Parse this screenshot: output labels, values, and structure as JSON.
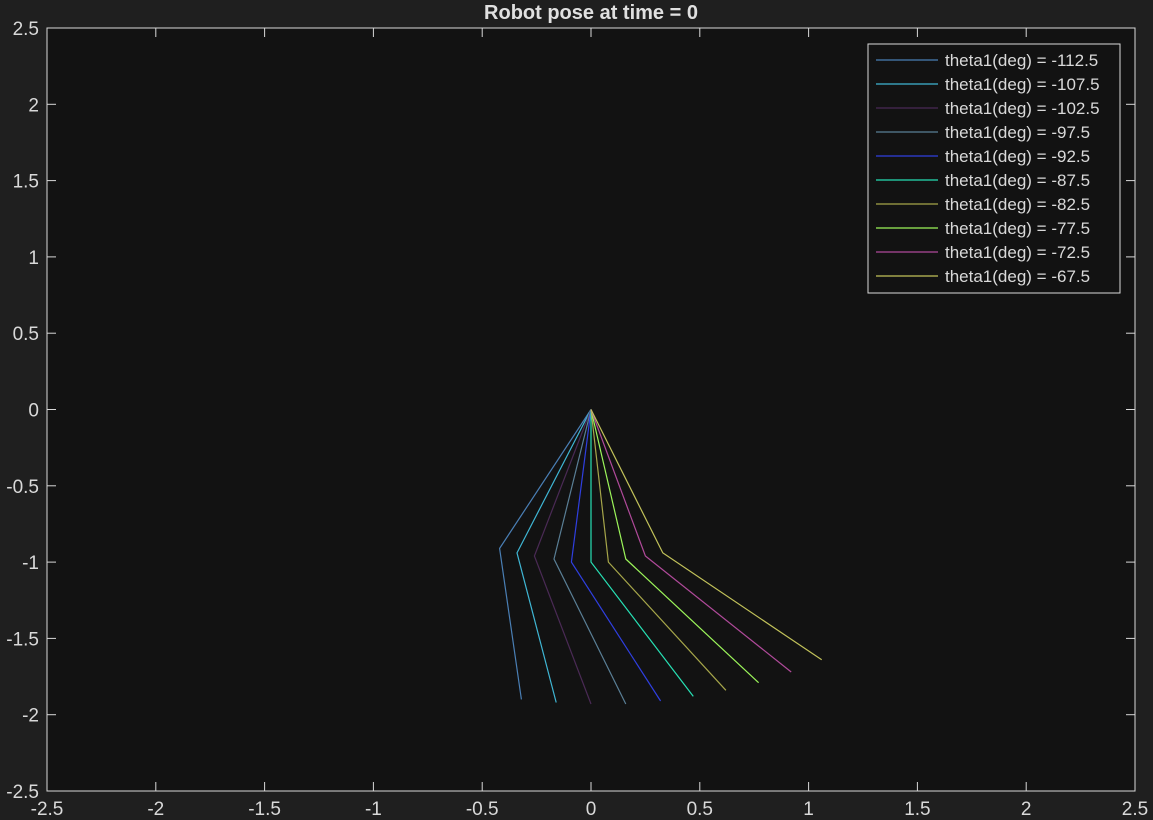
{
  "chart_data": {
    "type": "line",
    "title": "Robot pose at  time = 0",
    "xlabel": "",
    "ylabel": "",
    "xlim": [
      -2.5,
      2.5
    ],
    "ylim": [
      -2.5,
      2.5
    ],
    "xticks": [
      -2.5,
      -2,
      -1.5,
      -1,
      -0.5,
      0,
      0.5,
      1,
      1.5,
      2,
      2.5
    ],
    "yticks": [
      -2.5,
      -2,
      -1.5,
      -1,
      -0.5,
      0,
      0.5,
      1,
      1.5,
      2,
      2.5
    ],
    "xtick_labels": [
      "-2.5",
      "-2",
      "-1.5",
      "-1",
      "-0.5",
      "0",
      "0.5",
      "1",
      "1.5",
      "2",
      "2.5"
    ],
    "ytick_labels": [
      "-2.5",
      "-2",
      "-1.5",
      "-1",
      "-0.5",
      "0",
      "0.5",
      "1",
      "1.5",
      "2",
      "2.5"
    ],
    "grid": false,
    "legend_position": "top-right",
    "background_color": "#121212",
    "figure_color": "#1f1f1f",
    "axis_color": "#d9d9d9",
    "series": [
      {
        "name": "theta1(deg) = -112.5",
        "color": "#4a7fb5",
        "x": [
          0,
          -0.42,
          -0.32
        ],
        "y": [
          0,
          -0.91,
          -1.9
        ]
      },
      {
        "name": "theta1(deg) = -107.5",
        "color": "#3fb6d4",
        "x": [
          0,
          -0.34,
          -0.16
        ],
        "y": [
          0,
          -0.94,
          -1.92
        ]
      },
      {
        "name": "theta1(deg) = -102.5",
        "color": "#4a2a55",
        "x": [
          0,
          -0.26,
          0.0
        ],
        "y": [
          0,
          -0.96,
          -1.93
        ]
      },
      {
        "name": "theta1(deg) = -97.5",
        "color": "#5a7f96",
        "x": [
          0,
          -0.17,
          0.16
        ],
        "y": [
          0,
          -0.98,
          -1.93
        ]
      },
      {
        "name": "theta1(deg) = -92.5",
        "color": "#2f3fe0",
        "x": [
          0,
          -0.09,
          0.32
        ],
        "y": [
          0,
          -1.0,
          -1.91
        ]
      },
      {
        "name": "theta1(deg) = -87.5",
        "color": "#27e0b4",
        "x": [
          0,
          0.0,
          0.47
        ],
        "y": [
          0,
          -1.0,
          -1.88
        ]
      },
      {
        "name": "theta1(deg) = -82.5",
        "color": "#a6a64a",
        "x": [
          0,
          0.08,
          0.62
        ],
        "y": [
          0,
          -1.0,
          -1.84
        ]
      },
      {
        "name": "theta1(deg) = -77.5",
        "color": "#9cf55a",
        "x": [
          0,
          0.16,
          0.77
        ],
        "y": [
          0,
          -0.98,
          -1.79
        ]
      },
      {
        "name": "theta1(deg) = -72.5",
        "color": "#b04a9a",
        "x": [
          0,
          0.25,
          0.92
        ],
        "y": [
          0,
          -0.96,
          -1.72
        ]
      },
      {
        "name": "theta1(deg) = -67.5",
        "color": "#c2c25a",
        "x": [
          0,
          0.33,
          1.06
        ],
        "y": [
          0,
          -0.94,
          -1.64
        ]
      }
    ]
  }
}
